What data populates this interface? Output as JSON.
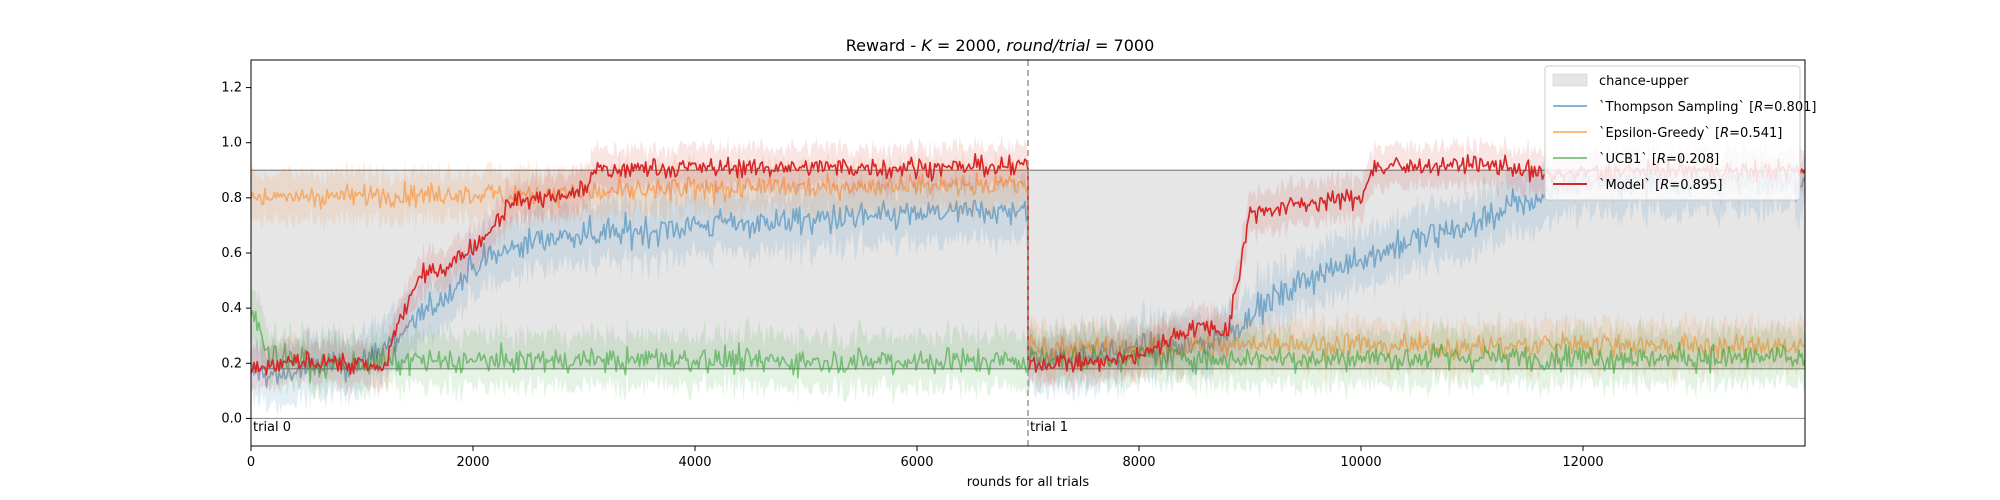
{
  "chart_data": {
    "type": "line",
    "title": "Reward - K = 2000, round/trial = 7000",
    "title_parts": {
      "prefix": "Reward - ",
      "k_var": "K",
      "k_eq": " = 2000, ",
      "rt_var": "round/trial",
      "rt_eq": " = 7000"
    },
    "xlabel": "rounds for all trials",
    "ylabel": "",
    "xlim": [
      0,
      14000
    ],
    "ylim": [
      -0.1,
      1.3
    ],
    "x_ticks": [
      0,
      2000,
      4000,
      6000,
      8000,
      10000,
      12000
    ],
    "y_ticks": [
      0.0,
      0.2,
      0.4,
      0.6,
      0.8,
      1.0,
      1.2
    ],
    "x_tick_labels": [
      "0",
      "2000",
      "4000",
      "6000",
      "8000",
      "10000",
      "12000"
    ],
    "y_tick_labels": [
      "0.0",
      "0.2",
      "0.4",
      "0.6",
      "0.8",
      "1.0",
      "1.2"
    ],
    "grid": false,
    "legend_position": "top-right",
    "trial_boundary_x": 7000,
    "trial_labels": [
      {
        "x": 0,
        "text": "trial 0"
      },
      {
        "x": 7000,
        "text": "trial 1"
      }
    ],
    "chance_band": {
      "name": "chance-upper",
      "lower": 0.18,
      "upper": 0.9,
      "color": "#e6e6e6"
    },
    "zero_line": 0.0,
    "series": [
      {
        "name": "`Thompson Sampling` [R=0.801]",
        "legend_main": "`Thompson Sampling` [",
        "legend_r": "R",
        "legend_tail": "=0.801]",
        "color": "#1f77b4",
        "opacity": 0.5,
        "noise": 0.05,
        "x": [
          0,
          200,
          500,
          800,
          1000,
          1200,
          1500,
          1800,
          2000,
          2300,
          2600,
          3000,
          3500,
          4000,
          4500,
          5000,
          5500,
          6000,
          6500,
          7000,
          7000,
          7300,
          7600,
          8000,
          8300,
          8600,
          8800,
          9000,
          9300,
          9600,
          10000,
          10300,
          10600,
          11000,
          11300,
          11600,
          11800,
          12000,
          12500,
          13000,
          13500,
          14000
        ],
        "y": [
          0.17,
          0.15,
          0.18,
          0.19,
          0.2,
          0.26,
          0.36,
          0.46,
          0.55,
          0.61,
          0.65,
          0.67,
          0.68,
          0.7,
          0.71,
          0.72,
          0.73,
          0.74,
          0.75,
          0.75,
          0.2,
          0.22,
          0.23,
          0.25,
          0.26,
          0.27,
          0.3,
          0.38,
          0.45,
          0.52,
          0.58,
          0.62,
          0.66,
          0.7,
          0.76,
          0.8,
          0.85,
          0.86,
          0.86,
          0.86,
          0.86,
          0.86
        ]
      },
      {
        "name": "`Epsilon-Greedy` [R=0.541]",
        "legend_main": "`Epsilon-Greedy` [",
        "legend_r": "R",
        "legend_tail": "=0.541]",
        "color": "#ff7f0e",
        "opacity": 0.5,
        "noise": 0.04,
        "x": [
          0,
          1000,
          2000,
          3000,
          4000,
          5000,
          6000,
          7000,
          7000,
          8000,
          9000,
          10000,
          11000,
          12000,
          13000,
          14000
        ],
        "y": [
          0.8,
          0.81,
          0.81,
          0.82,
          0.83,
          0.84,
          0.85,
          0.85,
          0.26,
          0.25,
          0.27,
          0.27,
          0.26,
          0.27,
          0.26,
          0.26
        ]
      },
      {
        "name": "`UCB1` [R=0.208]",
        "legend_main": "`UCB1` [",
        "legend_r": "R",
        "legend_tail": "=0.208]",
        "color": "#2ca02c",
        "opacity": 0.55,
        "noise": 0.045,
        "x": [
          0,
          200,
          500,
          1000,
          2000,
          3000,
          4000,
          5000,
          6000,
          7000,
          7000,
          8000,
          9000,
          10000,
          11000,
          12000,
          13000,
          14000
        ],
        "y": [
          0.38,
          0.22,
          0.2,
          0.2,
          0.21,
          0.21,
          0.21,
          0.21,
          0.21,
          0.21,
          0.22,
          0.22,
          0.22,
          0.22,
          0.22,
          0.22,
          0.22,
          0.22
        ]
      },
      {
        "name": "`Model` [R=0.895]",
        "legend_main": "`Model` [",
        "legend_r": "R",
        "legend_tail": "=0.895]",
        "color": "#d62728",
        "opacity": 1.0,
        "noise": 0.035,
        "x": [
          0,
          300,
          600,
          900,
          1200,
          1300,
          1500,
          1800,
          2000,
          2200,
          2300,
          2500,
          2800,
          3000,
          3100,
          4000,
          5000,
          6000,
          7000,
          7000,
          7500,
          8000,
          8300,
          8600,
          8800,
          8900,
          9000,
          9500,
          10000,
          10100,
          11000,
          11500,
          11700,
          12000,
          13000,
          14000
        ],
        "y": [
          0.17,
          0.2,
          0.21,
          0.2,
          0.18,
          0.32,
          0.5,
          0.56,
          0.62,
          0.7,
          0.77,
          0.79,
          0.81,
          0.83,
          0.9,
          0.91,
          0.91,
          0.91,
          0.91,
          0.2,
          0.2,
          0.22,
          0.3,
          0.33,
          0.32,
          0.52,
          0.75,
          0.78,
          0.8,
          0.91,
          0.92,
          0.9,
          0.88,
          0.89,
          0.9,
          0.9
        ]
      }
    ]
  }
}
